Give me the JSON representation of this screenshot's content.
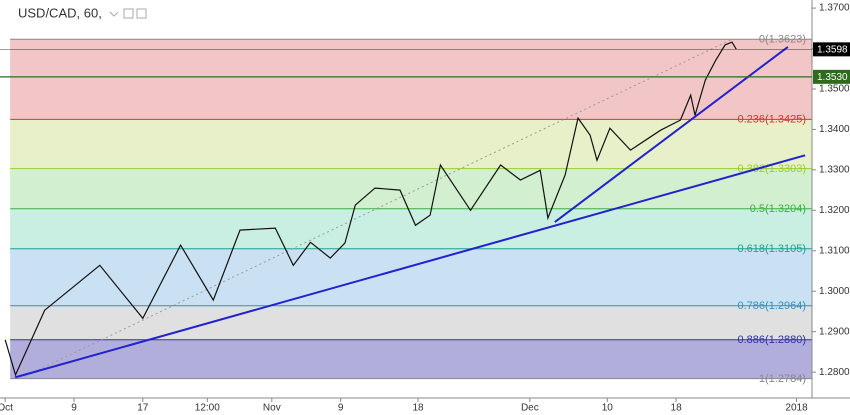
{
  "chart_data": {
    "type": "line",
    "title": "USD/CAD, 60,",
    "x": [
      0,
      1.2,
      4.6,
      11,
      16,
      20.4,
      24.2,
      27.3,
      31.4,
      33.5,
      35.5,
      37.8,
      39.5,
      40.7,
      43,
      45.9,
      47.7,
      49.4,
      50.6,
      54.1,
      57.6,
      59.9,
      62.2,
      63.1,
      65.1,
      66.6,
      68,
      68.8,
      70.3,
      72.7,
      76.2,
      78.5,
      79.7,
      80.2,
      81.4,
      82.6,
      83.7,
      84.5,
      85
    ],
    "series": [
      {
        "name": "USD/CAD",
        "color": "#111111",
        "values": [
          1.288,
          1.2793,
          1.2953,
          1.3064,
          1.2933,
          1.3114,
          1.2978,
          1.3151,
          1.3156,
          1.3064,
          1.3121,
          1.3082,
          1.3119,
          1.3213,
          1.3255,
          1.325,
          1.3163,
          1.3188,
          1.3312,
          1.32,
          1.3312,
          1.3275,
          1.3299,
          1.3181,
          1.3287,
          1.3428,
          1.3386,
          1.3324,
          1.3403,
          1.3349,
          1.3398,
          1.3423,
          1.3485,
          1.3435,
          1.3522,
          1.3571,
          1.3609,
          1.3616,
          1.3598
        ]
      }
    ],
    "xlim": [
      -0.6,
      93.8
    ],
    "xticks": [
      {
        "value": 0,
        "label": "Oct"
      },
      {
        "value": 8,
        "label": "9"
      },
      {
        "value": 16,
        "label": "17"
      },
      {
        "value": 23.5,
        "label": "12:00"
      },
      {
        "value": 31,
        "label": "Nov"
      },
      {
        "value": 39,
        "label": "9"
      },
      {
        "value": 48,
        "label": "18"
      },
      {
        "value": 61,
        "label": "Dec"
      },
      {
        "value": 70,
        "label": "10"
      },
      {
        "value": 78,
        "label": "18"
      },
      {
        "value": 92,
        "label": "2018"
      }
    ],
    "ylim": [
      1.2736,
      1.372
    ],
    "yticks": [
      {
        "value": 1.37,
        "label": "1.3700"
      },
      {
        "value": 1.36,
        "label": "1.3600"
      },
      {
        "value": 1.35,
        "label": "1.3500"
      },
      {
        "value": 1.34,
        "label": "1.3400"
      },
      {
        "value": 1.33,
        "label": "1.3300"
      },
      {
        "value": 1.32,
        "label": "1.3200"
      },
      {
        "value": 1.31,
        "label": "1.3100"
      },
      {
        "value": 1.3,
        "label": "1.3000"
      },
      {
        "value": 1.29,
        "label": "1.2900"
      },
      {
        "value": 1.28,
        "label": "1.2800"
      }
    ],
    "fib_levels": [
      {
        "label": "0(1.3623)",
        "value": 1.3623,
        "color": "#888888",
        "fill": "#f2c6c6"
      },
      {
        "label": "0.236(1.3425)",
        "value": 1.3425,
        "color": "#e03030",
        "fill": "#e7f0c8"
      },
      {
        "label": "0.382(1.3303)",
        "value": 1.3303,
        "color": "#9acd32",
        "fill": "#d2f0d0"
      },
      {
        "label": "0.5(1.3204)",
        "value": 1.3204,
        "color": "#3cb043",
        "fill": "#c9eee2"
      },
      {
        "label": "0.618(1.3105)",
        "value": 1.3105,
        "color": "#20a090",
        "fill": "#c9e1f2"
      },
      {
        "label": "0.786(1.2964)",
        "value": 1.2964,
        "color": "#3090c0",
        "fill": "#e0e0e0"
      },
      {
        "label": "0.886(1.2880)",
        "value": 1.288,
        "color": "#3030a0",
        "fill": "#b2aedb"
      },
      {
        "label": "1(1.2784)",
        "value": 1.2784,
        "color": "#888888",
        "fill": "none"
      }
    ],
    "trendlines": [
      {
        "x": [
          1.16,
          93
        ],
        "values": [
          1.2787,
          1.3336
        ],
        "color": "#2222cc"
      },
      {
        "x": [
          63.9,
          91
        ],
        "values": [
          1.3171,
          1.3604
        ],
        "color": "#2222cc"
      }
    ],
    "price_lines": [
      {
        "label": "1.3598",
        "value": 1.3598,
        "color": "#000000"
      },
      {
        "label": "1.3530",
        "value": 1.353,
        "color": "#2e6b1e"
      }
    ]
  }
}
